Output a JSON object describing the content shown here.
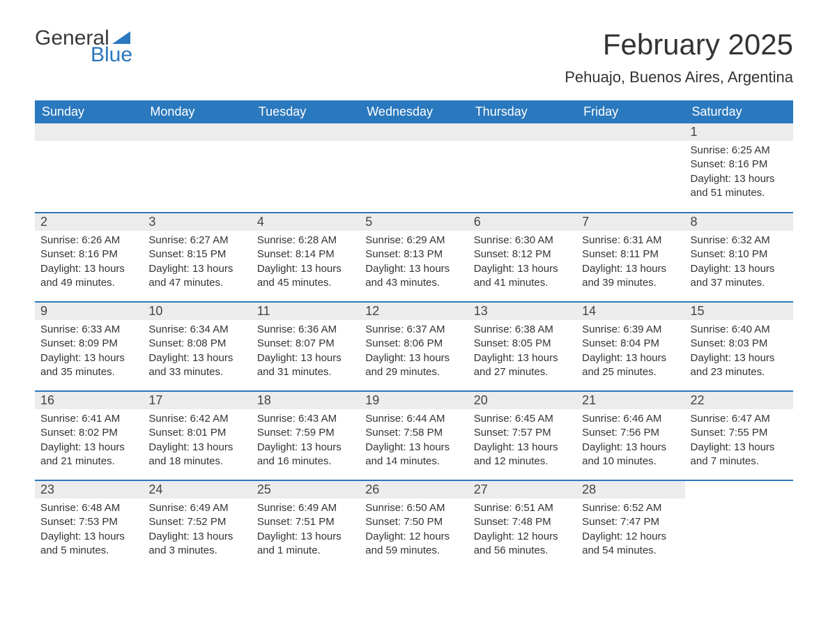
{
  "logo": {
    "text1": "General",
    "text2": "Blue"
  },
  "title": "February 2025",
  "location": "Pehuajo, Buenos Aires, Argentina",
  "colors": {
    "primary": "#2a78bd",
    "header_row_bg": "#ececec",
    "text": "#333333",
    "bg": "#ffffff"
  },
  "weekdays": [
    "Sunday",
    "Monday",
    "Tuesday",
    "Wednesday",
    "Thursday",
    "Friday",
    "Saturday"
  ],
  "weeks": [
    [
      null,
      null,
      null,
      null,
      null,
      null,
      {
        "n": "1",
        "sr": "Sunrise: 6:25 AM",
        "ss": "Sunset: 8:16 PM",
        "dl": "Daylight: 13 hours and 51 minutes."
      }
    ],
    [
      {
        "n": "2",
        "sr": "Sunrise: 6:26 AM",
        "ss": "Sunset: 8:16 PM",
        "dl": "Daylight: 13 hours and 49 minutes."
      },
      {
        "n": "3",
        "sr": "Sunrise: 6:27 AM",
        "ss": "Sunset: 8:15 PM",
        "dl": "Daylight: 13 hours and 47 minutes."
      },
      {
        "n": "4",
        "sr": "Sunrise: 6:28 AM",
        "ss": "Sunset: 8:14 PM",
        "dl": "Daylight: 13 hours and 45 minutes."
      },
      {
        "n": "5",
        "sr": "Sunrise: 6:29 AM",
        "ss": "Sunset: 8:13 PM",
        "dl": "Daylight: 13 hours and 43 minutes."
      },
      {
        "n": "6",
        "sr": "Sunrise: 6:30 AM",
        "ss": "Sunset: 8:12 PM",
        "dl": "Daylight: 13 hours and 41 minutes."
      },
      {
        "n": "7",
        "sr": "Sunrise: 6:31 AM",
        "ss": "Sunset: 8:11 PM",
        "dl": "Daylight: 13 hours and 39 minutes."
      },
      {
        "n": "8",
        "sr": "Sunrise: 6:32 AM",
        "ss": "Sunset: 8:10 PM",
        "dl": "Daylight: 13 hours and 37 minutes."
      }
    ],
    [
      {
        "n": "9",
        "sr": "Sunrise: 6:33 AM",
        "ss": "Sunset: 8:09 PM",
        "dl": "Daylight: 13 hours and 35 minutes."
      },
      {
        "n": "10",
        "sr": "Sunrise: 6:34 AM",
        "ss": "Sunset: 8:08 PM",
        "dl": "Daylight: 13 hours and 33 minutes."
      },
      {
        "n": "11",
        "sr": "Sunrise: 6:36 AM",
        "ss": "Sunset: 8:07 PM",
        "dl": "Daylight: 13 hours and 31 minutes."
      },
      {
        "n": "12",
        "sr": "Sunrise: 6:37 AM",
        "ss": "Sunset: 8:06 PM",
        "dl": "Daylight: 13 hours and 29 minutes."
      },
      {
        "n": "13",
        "sr": "Sunrise: 6:38 AM",
        "ss": "Sunset: 8:05 PM",
        "dl": "Daylight: 13 hours and 27 minutes."
      },
      {
        "n": "14",
        "sr": "Sunrise: 6:39 AM",
        "ss": "Sunset: 8:04 PM",
        "dl": "Daylight: 13 hours and 25 minutes."
      },
      {
        "n": "15",
        "sr": "Sunrise: 6:40 AM",
        "ss": "Sunset: 8:03 PM",
        "dl": "Daylight: 13 hours and 23 minutes."
      }
    ],
    [
      {
        "n": "16",
        "sr": "Sunrise: 6:41 AM",
        "ss": "Sunset: 8:02 PM",
        "dl": "Daylight: 13 hours and 21 minutes."
      },
      {
        "n": "17",
        "sr": "Sunrise: 6:42 AM",
        "ss": "Sunset: 8:01 PM",
        "dl": "Daylight: 13 hours and 18 minutes."
      },
      {
        "n": "18",
        "sr": "Sunrise: 6:43 AM",
        "ss": "Sunset: 7:59 PM",
        "dl": "Daylight: 13 hours and 16 minutes."
      },
      {
        "n": "19",
        "sr": "Sunrise: 6:44 AM",
        "ss": "Sunset: 7:58 PM",
        "dl": "Daylight: 13 hours and 14 minutes."
      },
      {
        "n": "20",
        "sr": "Sunrise: 6:45 AM",
        "ss": "Sunset: 7:57 PM",
        "dl": "Daylight: 13 hours and 12 minutes."
      },
      {
        "n": "21",
        "sr": "Sunrise: 6:46 AM",
        "ss": "Sunset: 7:56 PM",
        "dl": "Daylight: 13 hours and 10 minutes."
      },
      {
        "n": "22",
        "sr": "Sunrise: 6:47 AM",
        "ss": "Sunset: 7:55 PM",
        "dl": "Daylight: 13 hours and 7 minutes."
      }
    ],
    [
      {
        "n": "23",
        "sr": "Sunrise: 6:48 AM",
        "ss": "Sunset: 7:53 PM",
        "dl": "Daylight: 13 hours and 5 minutes."
      },
      {
        "n": "24",
        "sr": "Sunrise: 6:49 AM",
        "ss": "Sunset: 7:52 PM",
        "dl": "Daylight: 13 hours and 3 minutes."
      },
      {
        "n": "25",
        "sr": "Sunrise: 6:49 AM",
        "ss": "Sunset: 7:51 PM",
        "dl": "Daylight: 13 hours and 1 minute."
      },
      {
        "n": "26",
        "sr": "Sunrise: 6:50 AM",
        "ss": "Sunset: 7:50 PM",
        "dl": "Daylight: 12 hours and 59 minutes."
      },
      {
        "n": "27",
        "sr": "Sunrise: 6:51 AM",
        "ss": "Sunset: 7:48 PM",
        "dl": "Daylight: 12 hours and 56 minutes."
      },
      {
        "n": "28",
        "sr": "Sunrise: 6:52 AM",
        "ss": "Sunset: 7:47 PM",
        "dl": "Daylight: 12 hours and 54 minutes."
      },
      null
    ]
  ]
}
